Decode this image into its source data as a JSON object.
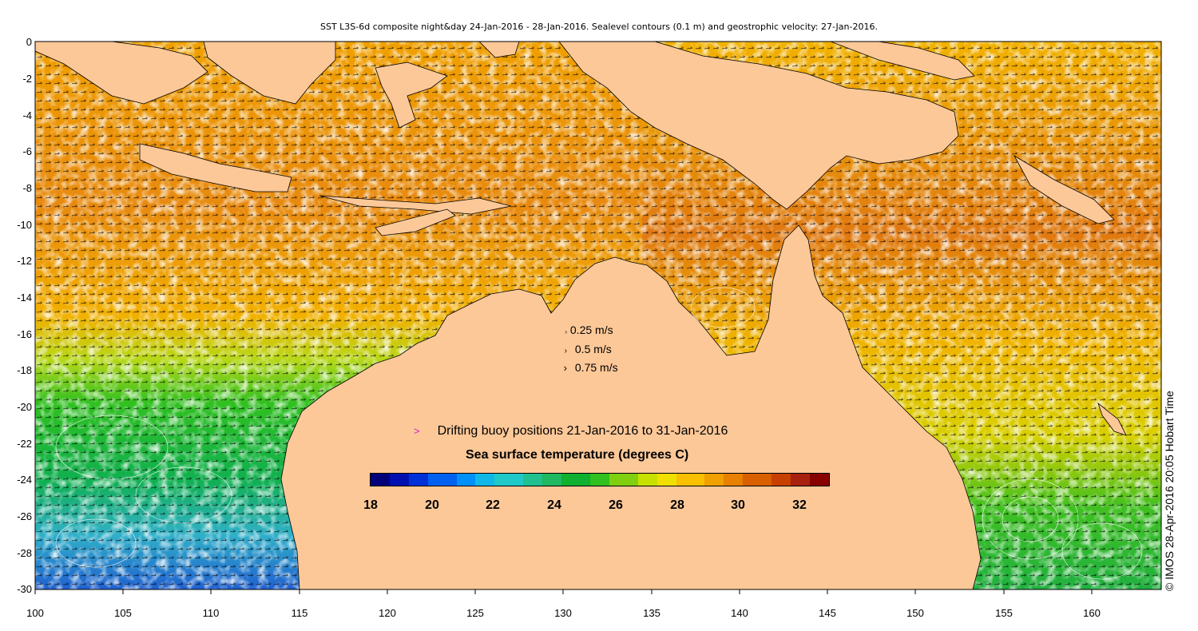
{
  "title": "SST L3S-6d composite night&day 24-Jan-2016 - 28-Jan-2016. Sealevel contours (0.1 m) and geostrophic velocity: 27-Jan-2016.",
  "credit": "© IMOS 28-Apr-2016 20:05 Hobart Time",
  "map": {
    "lon_range": [
      100,
      164
    ],
    "lat_range": [
      -30,
      0
    ],
    "x_ticks": [
      "100",
      "105",
      "110",
      "115",
      "120",
      "125",
      "130",
      "135",
      "140",
      "145",
      "150",
      "155",
      "160"
    ],
    "y_ticks": [
      "0",
      "-2",
      "-4",
      "-6",
      "-8",
      "-10",
      "-12",
      "-14",
      "-16",
      "-18",
      "-20",
      "-22",
      "-24",
      "-26",
      "-28",
      "-30"
    ],
    "colors": {
      "land": "#fcc898",
      "frame": "#000000"
    }
  },
  "velocity_legend": [
    {
      "arrow": "›",
      "label": "0.25 m/s"
    },
    {
      "arrow": "›",
      "label": "0.5 m/s"
    },
    {
      "arrow": "›",
      "label": "0.75 m/s"
    }
  ],
  "buoy_legend": {
    "symbol": ">",
    "label": "Drifting buoy positions 21-Jan-2016 to 31-Jan-2016"
  },
  "colorbar": {
    "title": "Sea surface temperature (degrees C)",
    "range": [
      18,
      33
    ],
    "ticks": [
      "18",
      "20",
      "22",
      "24",
      "26",
      "28",
      "30",
      "32"
    ]
  }
}
